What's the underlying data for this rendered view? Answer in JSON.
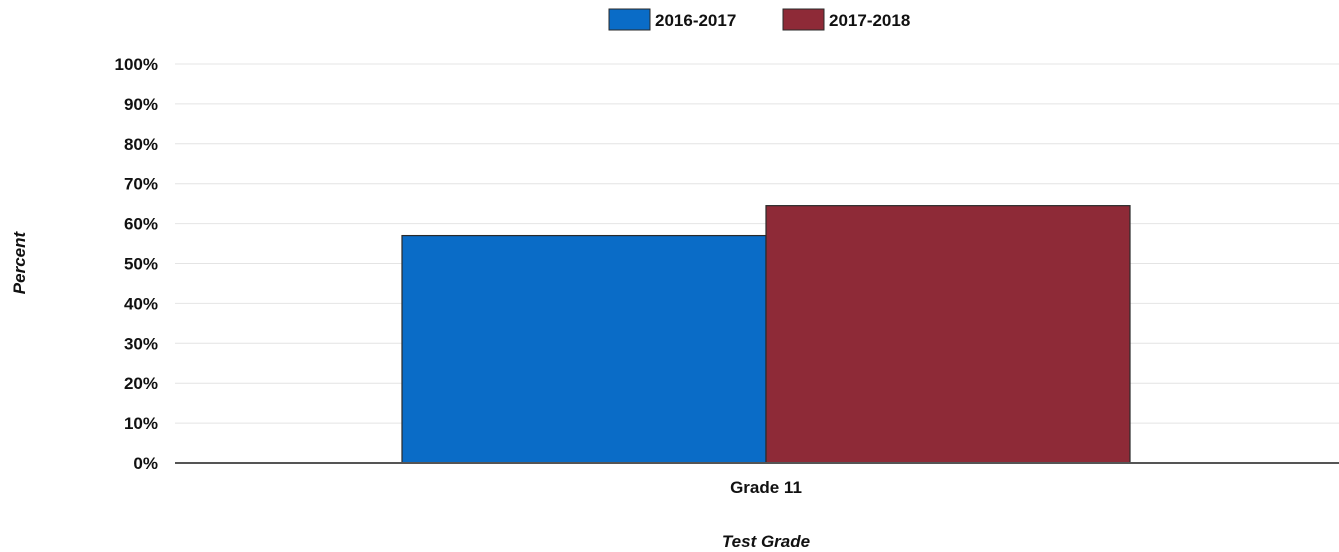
{
  "chart_data": {
    "type": "bar",
    "categories": [
      "Grade 11"
    ],
    "series": [
      {
        "name": "2016-2017",
        "color": "#0a6cc7",
        "values": [
          57
        ]
      },
      {
        "name": "2017-2018",
        "color": "#8e2a37",
        "values": [
          64.5
        ]
      }
    ],
    "xlabel": "Test Grade",
    "ylabel": "Percent",
    "ylim": [
      0,
      100
    ],
    "yticks": [
      0,
      10,
      20,
      30,
      40,
      50,
      60,
      70,
      80,
      90,
      100
    ],
    "ytick_labels": [
      "0%",
      "10%",
      "20%",
      "30%",
      "40%",
      "50%",
      "60%",
      "70%",
      "80%",
      "90%",
      "100%"
    ],
    "grid": true,
    "legend_position": "top-center"
  }
}
